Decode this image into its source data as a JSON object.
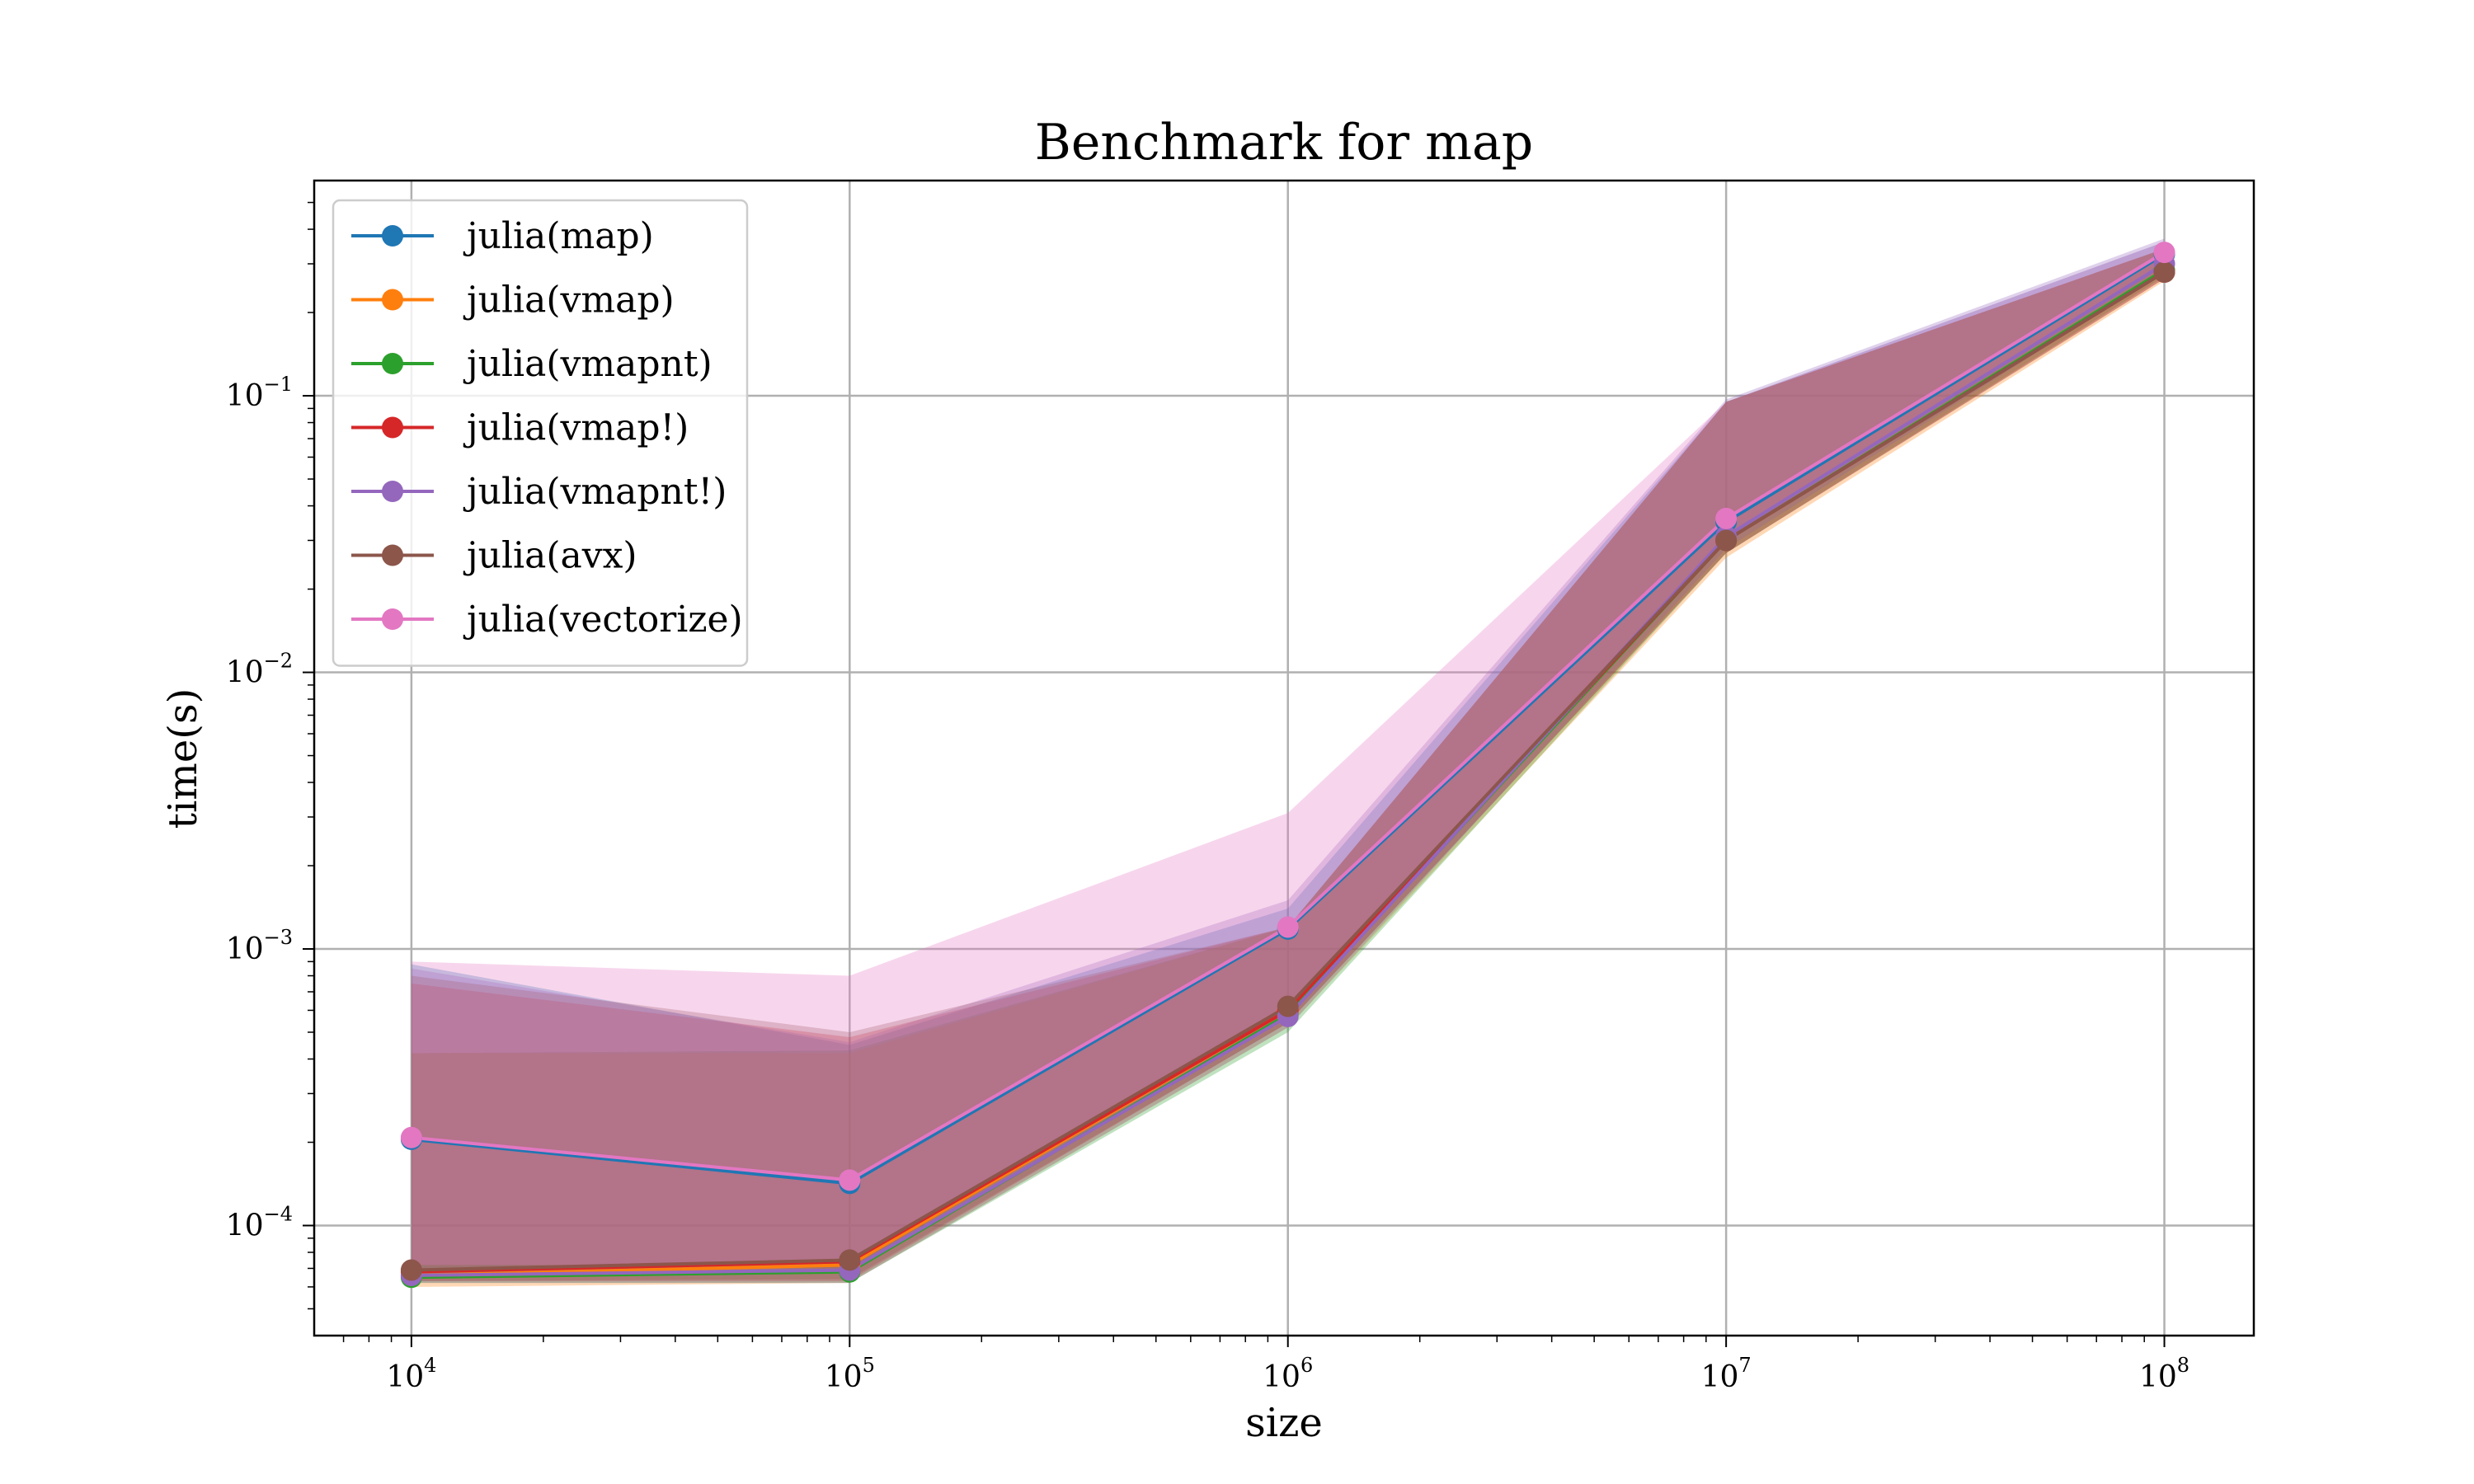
{
  "chart_data": {
    "type": "line",
    "title": "Benchmark for map",
    "xlabel": "size",
    "ylabel": "time(s)",
    "xscale": "log",
    "yscale": "log",
    "xlim": [
      6000,
      160000000
    ],
    "ylim": [
      4e-05,
      0.6
    ],
    "grid": true,
    "legend_position": "top-left",
    "x": [
      10000,
      100000,
      1000000,
      10000000,
      100000000
    ],
    "x_ticks": [
      {
        "base": "10",
        "exp": "4"
      },
      {
        "base": "10",
        "exp": "5"
      },
      {
        "base": "10",
        "exp": "6"
      },
      {
        "base": "10",
        "exp": "7"
      },
      {
        "base": "10",
        "exp": "8"
      }
    ],
    "y_ticks": [
      {
        "value": 0.0001,
        "base": "10",
        "exp": "−4"
      },
      {
        "value": 0.001,
        "base": "10",
        "exp": "−3"
      },
      {
        "value": 0.01,
        "base": "10",
        "exp": "−2"
      },
      {
        "value": 0.1,
        "base": "10",
        "exp": "−1"
      }
    ],
    "series": [
      {
        "name": "julia(map)",
        "color": "#1f77b4",
        "values": [
          0.000205,
          0.000142,
          0.00118,
          0.035,
          0.325
        ],
        "lower": [
          7e-05,
          7e-05,
          0.0006,
          0.03,
          0.3
        ],
        "upper": [
          0.00088,
          0.00045,
          0.0014,
          0.095,
          0.36
        ]
      },
      {
        "name": "julia(vmap)",
        "color": "#ff7f0e",
        "values": [
          6.6e-05,
          7.2e-05,
          0.0006,
          0.03,
          0.28
        ],
        "lower": [
          6e-05,
          6.2e-05,
          0.00052,
          0.026,
          0.26
        ],
        "upper": [
          0.00042,
          0.00042,
          0.0012,
          0.095,
          0.34
        ]
      },
      {
        "name": "julia(vmapnt)",
        "color": "#2ca02c",
        "values": [
          6.5e-05,
          6.8e-05,
          0.00058,
          0.03,
          0.285
        ],
        "lower": [
          6.2e-05,
          6.2e-05,
          0.0005,
          0.027,
          0.27
        ],
        "upper": [
          0.00042,
          0.00043,
          0.0012,
          0.095,
          0.34
        ]
      },
      {
        "name": "julia(vmap!)",
        "color": "#d62728",
        "values": [
          6.8e-05,
          7.4e-05,
          0.0006,
          0.03,
          0.28
        ],
        "lower": [
          6.3e-05,
          6.3e-05,
          0.00054,
          0.027,
          0.265
        ],
        "upper": [
          0.00075,
          0.00048,
          0.0012,
          0.095,
          0.34
        ]
      },
      {
        "name": "julia(vmapnt!)",
        "color": "#9467bd",
        "values": [
          6.6e-05,
          6.9e-05,
          0.00057,
          0.031,
          0.3
        ],
        "lower": [
          6.2e-05,
          6.2e-05,
          0.00052,
          0.028,
          0.28
        ],
        "upper": [
          0.00085,
          0.00046,
          0.0015,
          0.097,
          0.37
        ]
      },
      {
        "name": "julia(avx)",
        "color": "#8c564b",
        "values": [
          6.9e-05,
          7.5e-05,
          0.00062,
          0.03,
          0.28
        ],
        "lower": [
          6.3e-05,
          6.4e-05,
          0.00054,
          0.027,
          0.265
        ],
        "upper": [
          0.0008,
          0.0005,
          0.0012,
          0.095,
          0.34
        ]
      },
      {
        "name": "julia(vectorize)",
        "color": "#e377c2",
        "values": [
          0.000208,
          0.000146,
          0.0012,
          0.036,
          0.33
        ],
        "lower": [
          7.2e-05,
          7.2e-05,
          0.0006,
          0.03,
          0.3
        ],
        "upper": [
          0.0009,
          0.0008,
          0.0031,
          0.095,
          0.36
        ]
      }
    ]
  }
}
